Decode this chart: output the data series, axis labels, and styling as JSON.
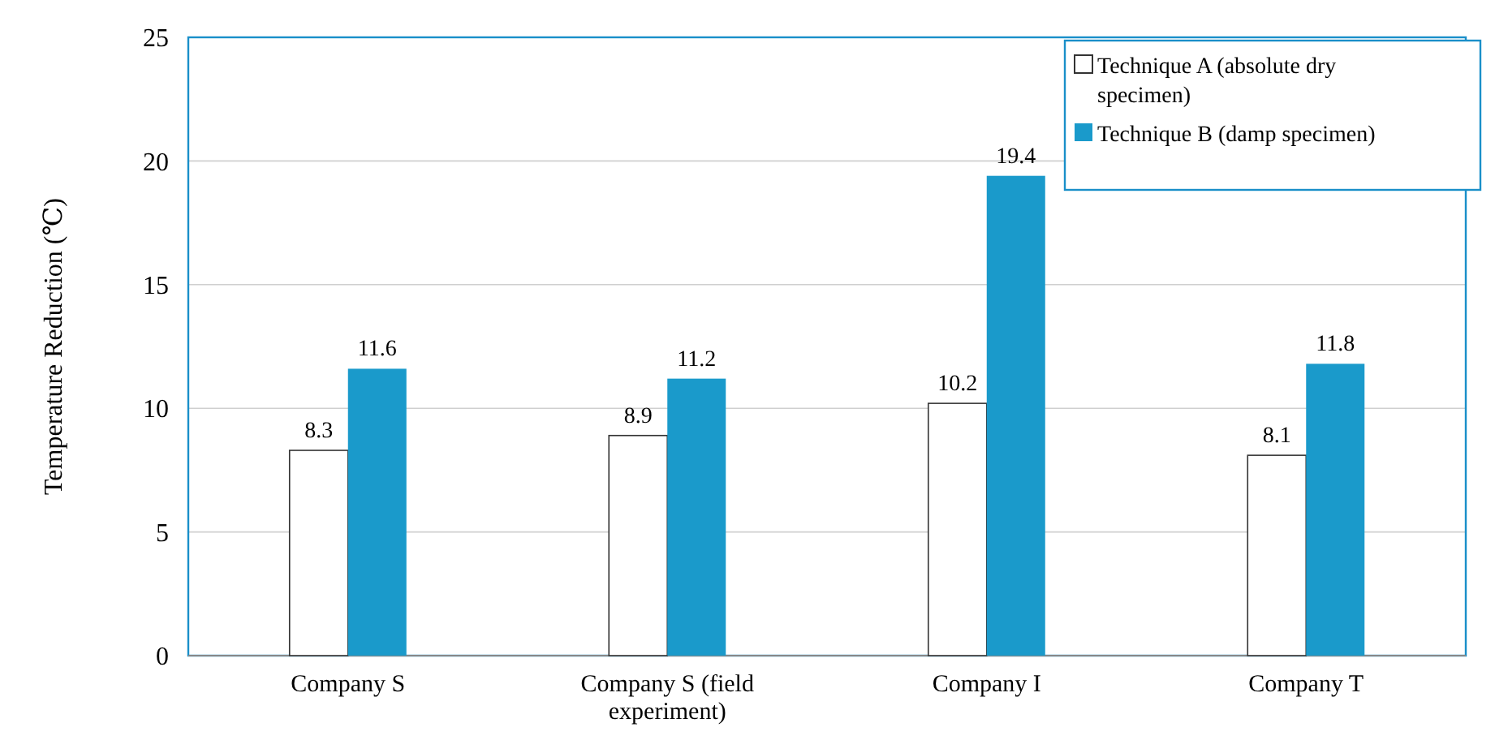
{
  "chart_data": {
    "type": "bar",
    "ylabel": "Temperature Reduction (℃)",
    "categories": [
      "Company S",
      "Company S (field experiment)",
      "Company I",
      "Company T"
    ],
    "series": [
      {
        "name": "Technique A (absolute dry specimen)",
        "color": "#ffffff",
        "values": [
          8.3,
          8.9,
          10.2,
          8.1
        ]
      },
      {
        "name": "Technique B (damp specimen)",
        "color": "#1a9acb",
        "values": [
          11.6,
          11.2,
          19.4,
          11.8
        ]
      }
    ],
    "ylim": [
      0,
      25
    ],
    "yticks": [
      0,
      5,
      10,
      15,
      20,
      25
    ],
    "grid": "y",
    "legend": "top right",
    "data_labels": true
  }
}
